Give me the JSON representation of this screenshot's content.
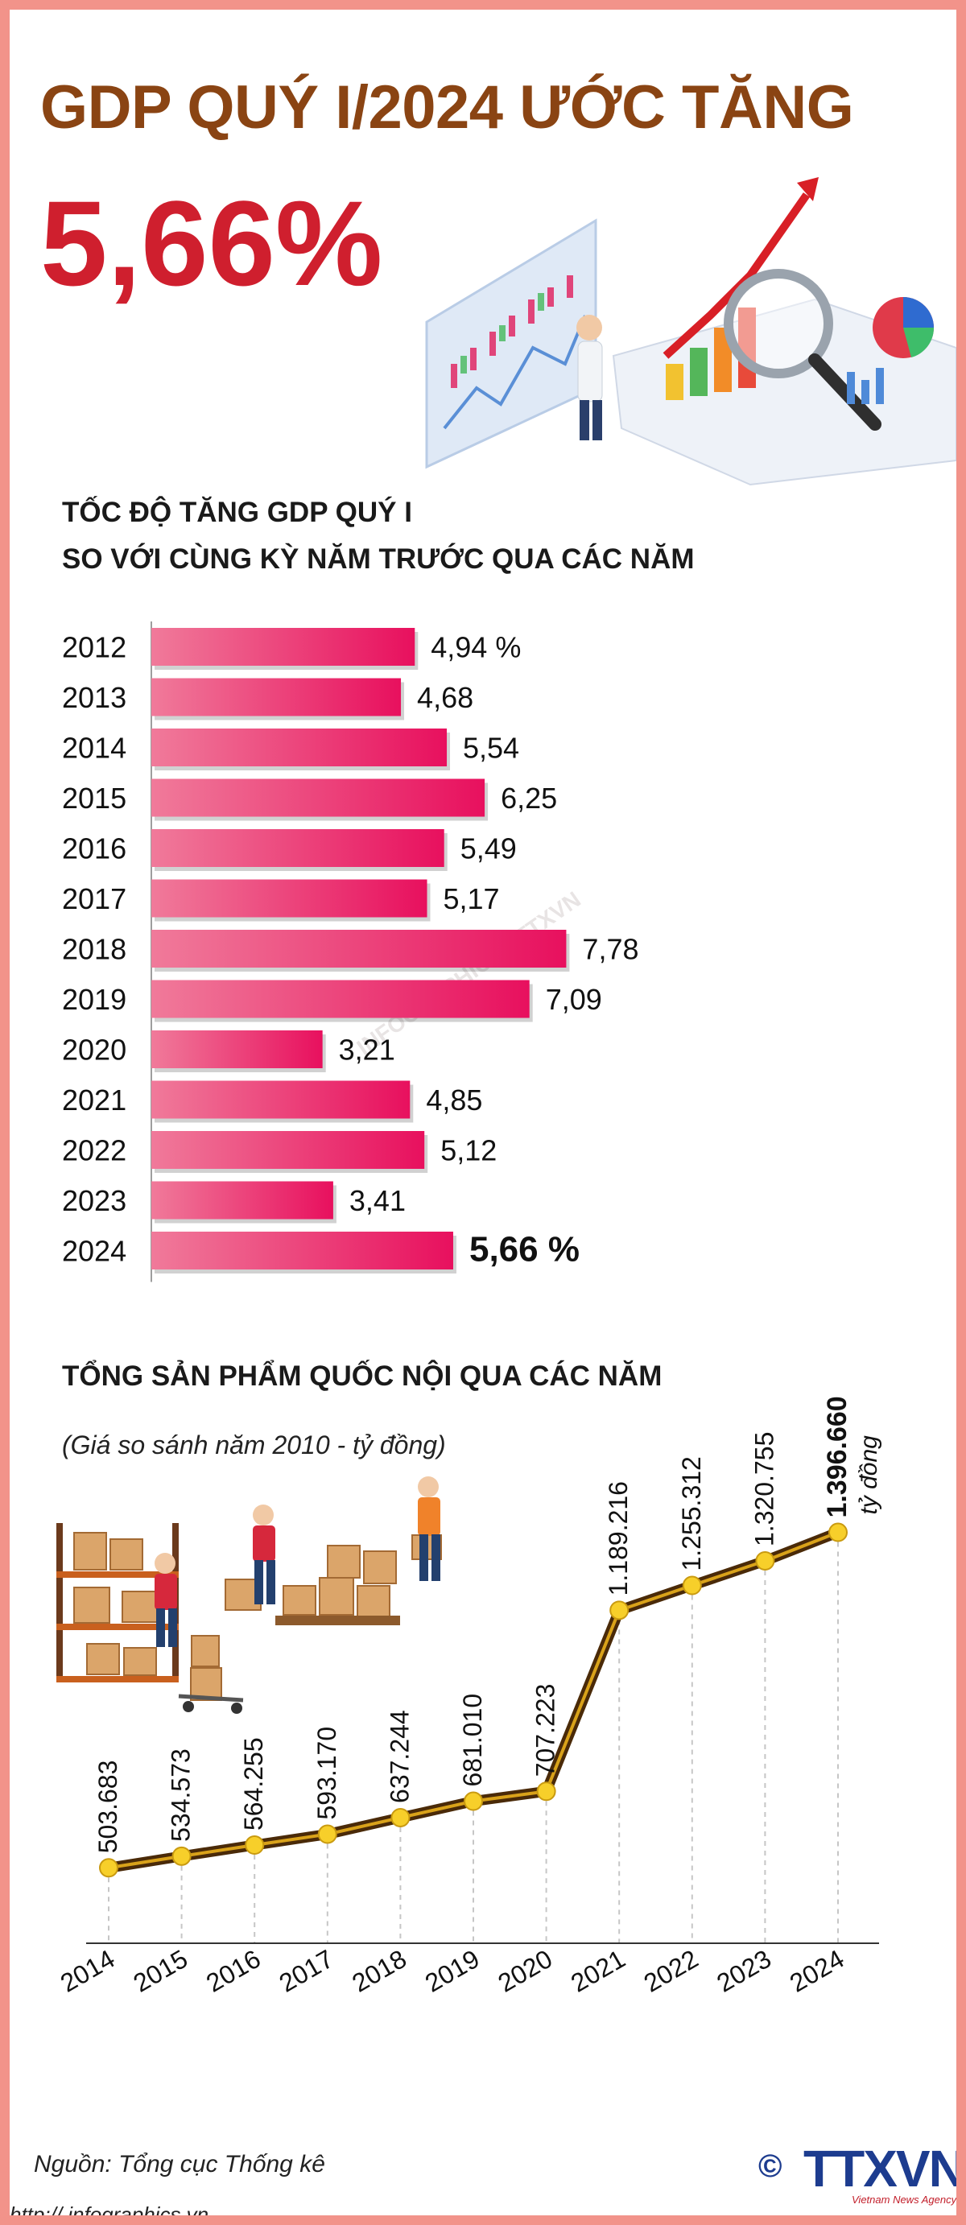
{
  "header": {
    "title": "GDP QUÝ I/2024 ƯỚC TĂNG",
    "headline_value": "5,66%"
  },
  "bar_section": {
    "title_line1": "TỐC ĐỘ TĂNG GDP QUÝ I",
    "title_line2": "SO VỚI CÙNG KỲ NĂM TRƯỚC QUA CÁC NĂM"
  },
  "line_section": {
    "title": "TỔNG SẢN PHẨM QUỐC NỘI QUA CÁC NĂM",
    "subtitle": "(Giá so sánh năm 2010 - tỷ đồng)",
    "unit_label": "tỷ đồng"
  },
  "footer": {
    "source": "Nguồn: Tổng cục Thống kê",
    "url": "http:// infographics.vn",
    "logo_copyright": "©",
    "logo_text": "TTXVN",
    "logo_subtext": "Vietnam News Agency"
  },
  "colors": {
    "bar_start": "#f07a9a",
    "bar_end": "#e8105e",
    "line_dark": "#4a2a08",
    "line_inner": "#d9a21a",
    "point": "#f7cf2a",
    "title_brown": "#8a4413",
    "headline_red": "#cf1f2e"
  },
  "chart_data": [
    {
      "type": "bar",
      "orientation": "horizontal",
      "categories": [
        "2012",
        "2013",
        "2014",
        "2015",
        "2016",
        "2017",
        "2018",
        "2019",
        "2020",
        "2021",
        "2022",
        "2023",
        "2024"
      ],
      "values": [
        4.94,
        4.68,
        5.54,
        6.25,
        5.49,
        5.17,
        7.78,
        7.09,
        3.21,
        4.85,
        5.12,
        3.41,
        5.66
      ],
      "value_labels": [
        "4,94 %",
        "4,68",
        "5,54",
        "6,25",
        "5,49",
        "5,17",
        "7,78",
        "7,09",
        "3,21",
        "4,85",
        "5,12",
        "3,41",
        "5,66 %"
      ],
      "title": "TỐC ĐỘ TĂNG GDP QUÝ I SO VỚI CÙNG KỲ NĂM TRƯỚC QUA CÁC NĂM",
      "xlim": [
        0,
        8
      ]
    },
    {
      "type": "line",
      "x": [
        "2014",
        "2015",
        "2016",
        "2017",
        "2018",
        "2019",
        "2020",
        "2021",
        "2022",
        "2023",
        "2024"
      ],
      "values": [
        503683,
        534573,
        564255,
        593170,
        637244,
        681010,
        707223,
        1189216,
        1255312,
        1320755,
        1396660
      ],
      "value_labels": [
        "503.683",
        "534.573",
        "564.255",
        "593.170",
        "637.244",
        "681.010",
        "707.223",
        "1.189.216",
        "1.255.312",
        "1.320.755",
        "1.396.660"
      ],
      "title": "TỔNG SẢN PHẨM QUỐC NỘI QUA CÁC NĂM",
      "subtitle": "(Giá so sánh năm 2010 - tỷ đồng)",
      "ylim": [
        400000,
        1500000
      ]
    }
  ]
}
